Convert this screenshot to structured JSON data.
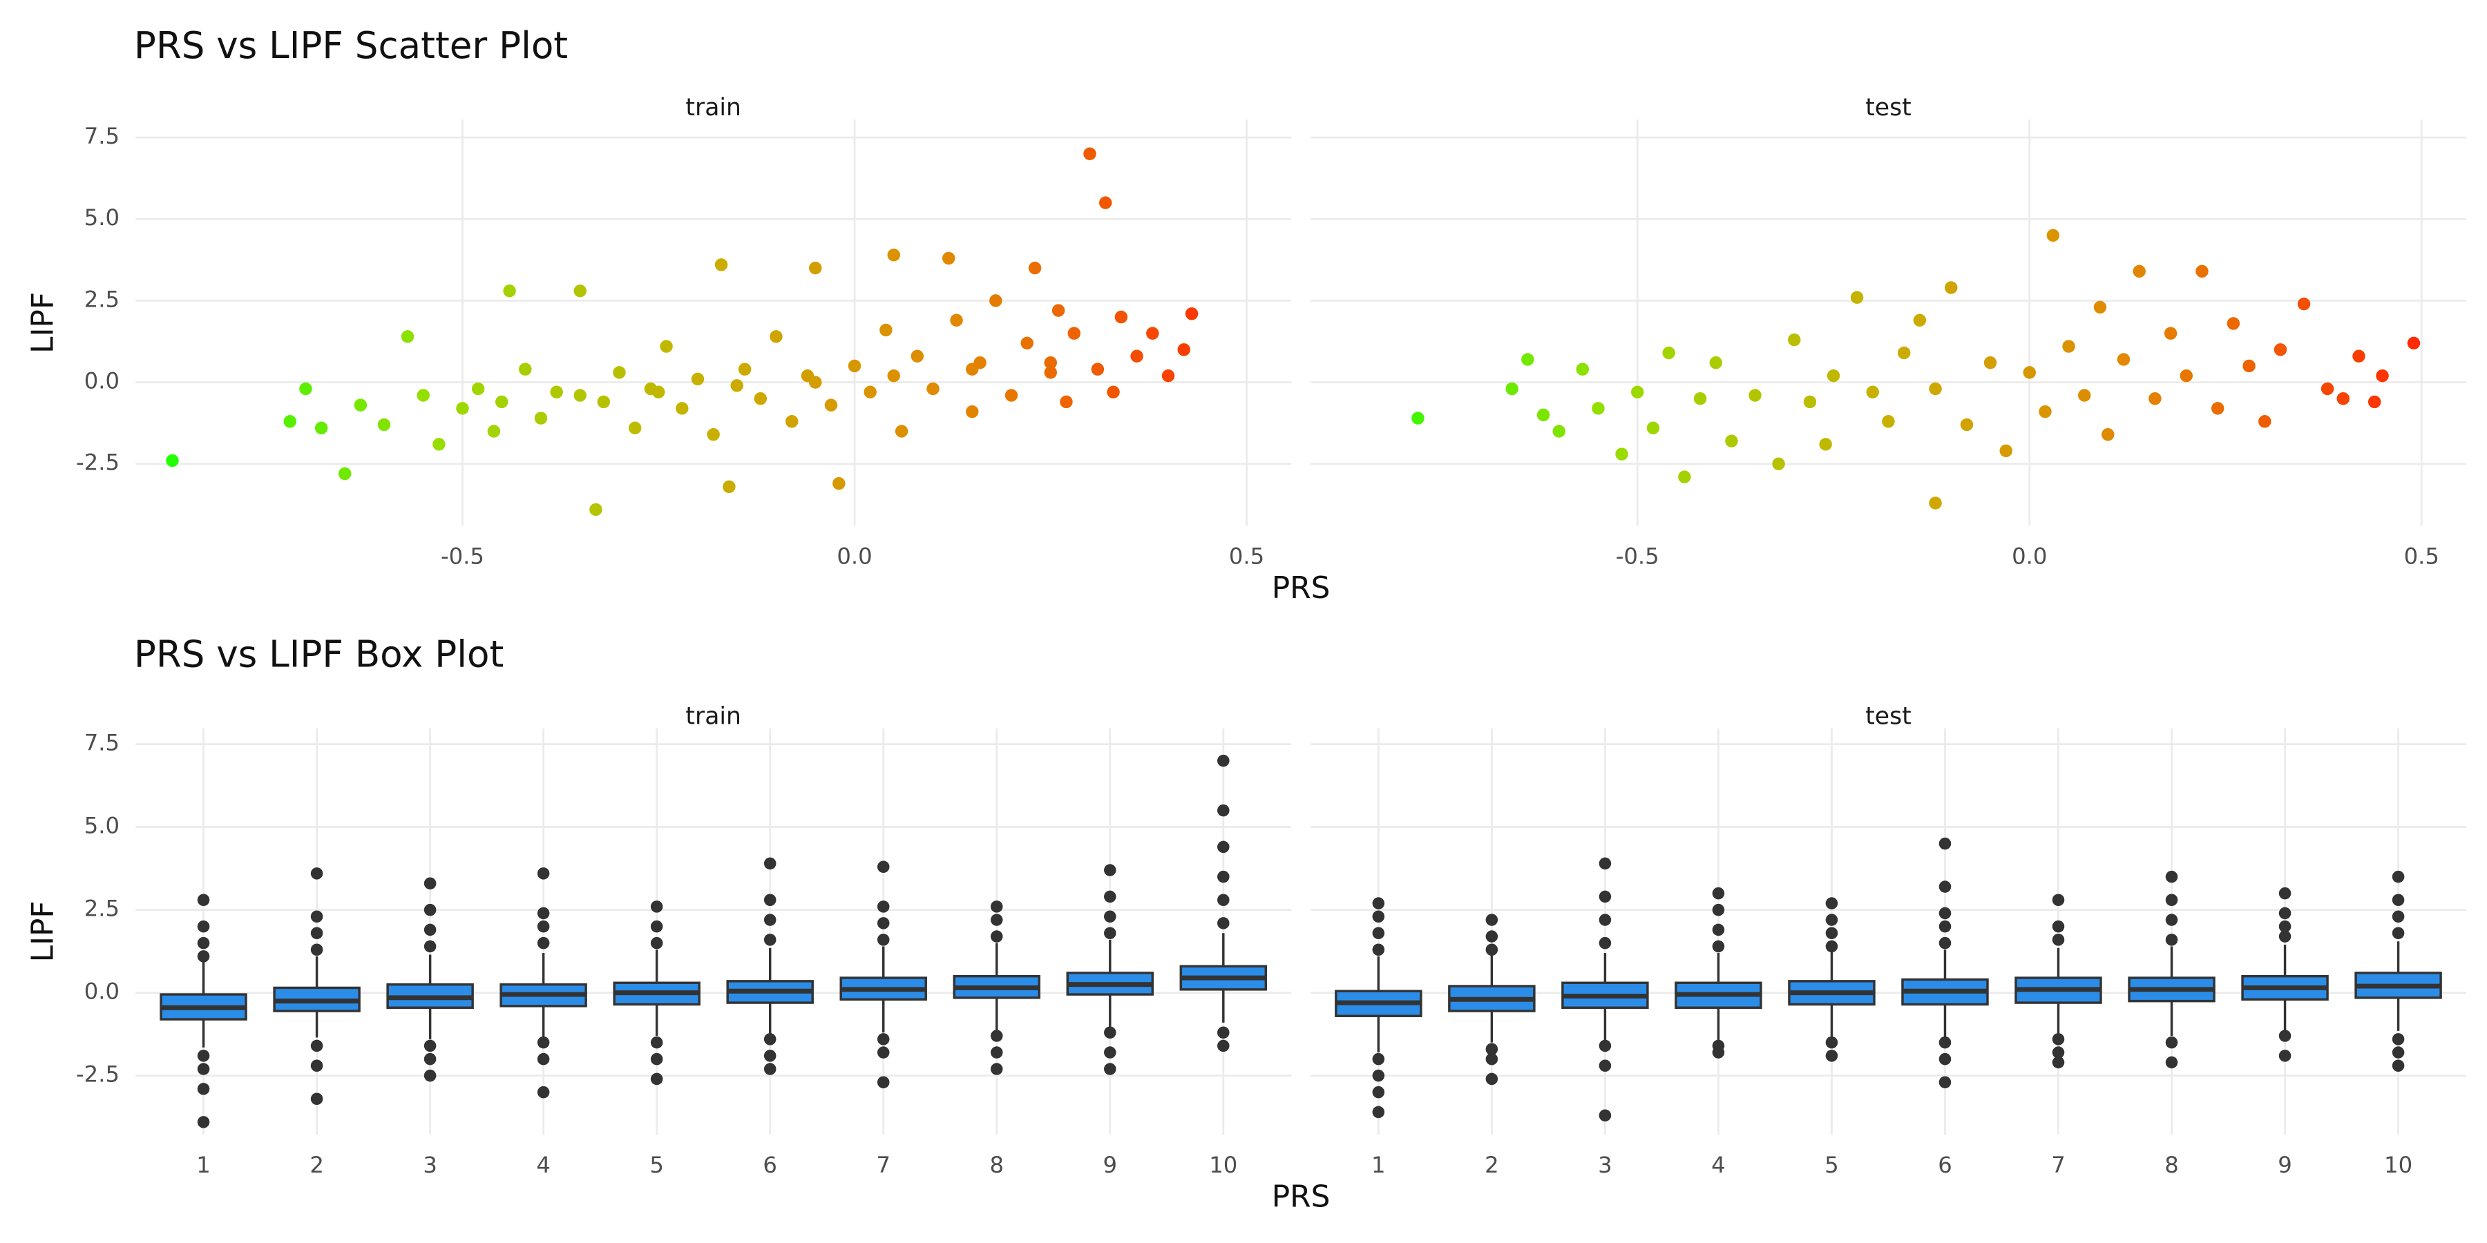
{
  "chart_data": [
    {
      "type": "scatter",
      "title": "PRS vs LIPF Scatter Plot",
      "xlabel": "PRS",
      "ylabel": "LIPF",
      "xlim": [
        -0.917,
        0.557
      ],
      "xticks": [
        -0.5,
        {
          "value": 0,
          "label": "0.0"
        },
        0.5
      ],
      "ylim": [
        -4.4,
        8.05
      ],
      "yticks": [
        -2.5,
        {
          "value": 0,
          "label": "0.0"
        },
        2.5,
        {
          "value": 5,
          "label": "5.0"
        },
        7.5
      ],
      "grid": true,
      "colors": [
        "#22ff00",
        "#99dd00",
        "#c8b000",
        "#e38400",
        "#ff2a00"
      ],
      "facets": [
        {
          "name": "train",
          "x": [
            -0.87,
            -0.72,
            -0.7,
            -0.68,
            -0.65,
            -0.63,
            -0.6,
            -0.57,
            -0.55,
            -0.53,
            -0.5,
            -0.48,
            -0.46,
            -0.45,
            -0.44,
            -0.42,
            -0.4,
            -0.38,
            -0.35,
            -0.35,
            -0.33,
            -0.32,
            -0.3,
            -0.28,
            -0.26,
            -0.25,
            -0.24,
            -0.22,
            -0.2,
            -0.18,
            -0.17,
            -0.16,
            -0.15,
            -0.14,
            -0.12,
            -0.1,
            -0.08,
            -0.06,
            -0.05,
            -0.05,
            -0.03,
            -0.02,
            0,
            0.02,
            0.04,
            0.05,
            0.05,
            0.06,
            0.08,
            0.1,
            0.12,
            0.13,
            0.15,
            0.15,
            0.16,
            0.18,
            0.2,
            0.22,
            0.23,
            0.25,
            0.25,
            0.26,
            0.27,
            0.28,
            0.3,
            0.31,
            0.32,
            0.33,
            0.34,
            0.36,
            0.38,
            0.4,
            0.42,
            0.43
          ],
          "y": [
            -2.4,
            -1.2,
            -0.2,
            -1.4,
            -2.8,
            -0.7,
            -1.3,
            1.4,
            -0.4,
            -1.9,
            -0.8,
            -0.2,
            -1.5,
            -0.6,
            2.8,
            0.4,
            -1.1,
            -0.3,
            2.8,
            -0.4,
            -3.9,
            -0.6,
            0.3,
            -1.4,
            -0.2,
            -0.3,
            1.1,
            -0.8,
            0.1,
            -1.6,
            3.6,
            -3.2,
            -0.1,
            0.4,
            -0.5,
            1.4,
            -1.2,
            0.2,
            3.5,
            0,
            -0.7,
            -3.1,
            0.5,
            -0.3,
            1.6,
            3.9,
            0.2,
            -1.5,
            0.8,
            -0.2,
            3.8,
            1.9,
            -0.9,
            0.4,
            0.6,
            2.5,
            -0.4,
            1.2,
            3.5,
            0.3,
            0.6,
            2.2,
            -0.6,
            1.5,
            7.0,
            0.4,
            5.5,
            -0.3,
            2.0,
            0.8,
            1.5,
            0.2,
            1.0,
            2.1
          ]
        },
        {
          "name": "test",
          "x": [
            -0.78,
            -0.66,
            -0.64,
            -0.62,
            -0.6,
            -0.57,
            -0.55,
            -0.52,
            -0.5,
            -0.48,
            -0.46,
            -0.44,
            -0.42,
            -0.4,
            -0.38,
            -0.35,
            -0.32,
            -0.3,
            -0.28,
            -0.26,
            -0.25,
            -0.22,
            -0.2,
            -0.18,
            -0.16,
            -0.14,
            -0.12,
            -0.12,
            -0.1,
            -0.08,
            -0.05,
            -0.03,
            0,
            0.02,
            0.03,
            0.05,
            0.07,
            0.09,
            0.1,
            0.12,
            0.14,
            0.16,
            0.18,
            0.2,
            0.22,
            0.24,
            0.26,
            0.28,
            0.3,
            0.32,
            0.35,
            0.38,
            0.4,
            0.42,
            0.44,
            0.45,
            0.49
          ],
          "y": [
            -1.1,
            -0.2,
            0.7,
            -1.0,
            -1.5,
            0.4,
            -0.8,
            -2.2,
            -0.3,
            -1.4,
            0.9,
            -2.9,
            -0.5,
            0.6,
            -1.8,
            -0.4,
            -2.5,
            1.3,
            -0.6,
            -1.9,
            0.2,
            2.6,
            -0.3,
            -1.2,
            0.9,
            1.9,
            -3.7,
            -0.2,
            2.9,
            -1.3,
            0.6,
            -2.1,
            0.3,
            -0.9,
            4.5,
            1.1,
            -0.4,
            2.3,
            -1.6,
            0.7,
            3.4,
            -0.5,
            1.5,
            0.2,
            3.4,
            -0.8,
            1.8,
            0.5,
            -1.2,
            1.0,
            2.4,
            -0.2,
            -0.5,
            0.8,
            -0.6,
            0.2,
            1.2
          ]
        }
      ]
    },
    {
      "type": "box",
      "title": "PRS vs LIPF Box Plot",
      "xlabel": "PRS",
      "ylabel": "LIPF",
      "categories": [
        "1",
        "2",
        "3",
        "4",
        "5",
        "6",
        "7",
        "8",
        "9",
        "10"
      ],
      "ylim": [
        -4.28,
        7.98
      ],
      "yticks": [
        -2.5,
        {
          "value": 0,
          "label": "0.0"
        },
        2.5,
        {
          "value": 5,
          "label": "5.0"
        },
        7.5
      ],
      "grid": true,
      "color": "#2b8de8",
      "line_color": "#333333",
      "facets": [
        {
          "name": "train",
          "boxes": [
            {
              "low": -1.65,
              "q1": -0.8,
              "median": -0.45,
              "q3": -0.05,
              "high": 0.95,
              "outliers": [
                1.1,
                1.5,
                2.0,
                2.8,
                -1.9,
                -2.3,
                -2.9,
                -3.9
              ]
            },
            {
              "low": -1.35,
              "q1": -0.55,
              "median": -0.25,
              "q3": 0.15,
              "high": 1.1,
              "outliers": [
                1.3,
                1.8,
                2.3,
                3.6,
                -1.6,
                -2.2,
                -3.2
              ]
            },
            {
              "low": -1.4,
              "q1": -0.45,
              "median": -0.15,
              "q3": 0.25,
              "high": 1.15,
              "outliers": [
                1.4,
                1.9,
                2.5,
                3.3,
                -1.6,
                -2.0,
                -2.5
              ]
            },
            {
              "low": -1.35,
              "q1": -0.4,
              "median": -0.05,
              "q3": 0.25,
              "high": 1.2,
              "outliers": [
                1.5,
                2.0,
                2.4,
                3.6,
                -1.5,
                -2.0,
                -3.0
              ]
            },
            {
              "low": -1.3,
              "q1": -0.35,
              "median": 0,
              "q3": 0.3,
              "high": 1.3,
              "outliers": [
                1.5,
                2.0,
                2.6,
                -1.5,
                -2.0,
                -2.6
              ]
            },
            {
              "low": -1.25,
              "q1": -0.3,
              "median": 0.05,
              "q3": 0.35,
              "high": 1.35,
              "outliers": [
                1.6,
                2.2,
                2.8,
                3.9,
                -1.4,
                -1.9,
                -2.3
              ]
            },
            {
              "low": -1.2,
              "q1": -0.2,
              "median": 0.1,
              "q3": 0.45,
              "high": 1.4,
              "outliers": [
                1.6,
                2.1,
                2.6,
                3.8,
                -1.4,
                -1.8,
                -2.7
              ]
            },
            {
              "low": -1.2,
              "q1": -0.15,
              "median": 0.15,
              "q3": 0.5,
              "high": 1.5,
              "outliers": [
                1.7,
                2.2,
                2.6,
                -1.3,
                -1.8,
                -2.3
              ]
            },
            {
              "low": -1.1,
              "q1": -0.05,
              "median": 0.25,
              "q3": 0.6,
              "high": 1.6,
              "outliers": [
                1.8,
                2.3,
                2.9,
                3.7,
                -1.2,
                -1.8,
                -2.3
              ]
            },
            {
              "low": -0.9,
              "q1": 0.1,
              "median": 0.45,
              "q3": 0.8,
              "high": 1.8,
              "outliers": [
                2.1,
                2.8,
                3.5,
                4.4,
                5.5,
                7.0,
                -1.2,
                -1.6
              ]
            }
          ]
        },
        {
          "name": "test",
          "boxes": [
            {
              "low": -1.8,
              "q1": -0.7,
              "median": -0.3,
              "q3": 0.05,
              "high": 1.1,
              "outliers": [
                1.3,
                1.8,
                2.3,
                2.7,
                -2.0,
                -2.5,
                -3.0,
                -3.6
              ]
            },
            {
              "low": -1.5,
              "q1": -0.55,
              "median": -0.2,
              "q3": 0.2,
              "high": 1.15,
              "outliers": [
                1.3,
                1.7,
                2.2,
                -1.7,
                -2.0,
                -2.6
              ]
            },
            {
              "low": -1.5,
              "q1": -0.45,
              "median": -0.1,
              "q3": 0.3,
              "high": 1.2,
              "outliers": [
                1.5,
                2.2,
                2.9,
                3.9,
                -1.6,
                -2.2,
                -3.7
              ]
            },
            {
              "low": -1.45,
              "q1": -0.45,
              "median": -0.05,
              "q3": 0.3,
              "high": 1.2,
              "outliers": [
                1.4,
                1.9,
                2.5,
                3.0,
                -1.6,
                -1.8
              ]
            },
            {
              "low": -1.4,
              "q1": -0.35,
              "median": 0,
              "q3": 0.35,
              "high": 1.25,
              "outliers": [
                1.4,
                1.8,
                2.2,
                2.7,
                -1.5,
                -1.9
              ]
            },
            {
              "low": -1.4,
              "q1": -0.35,
              "median": 0.05,
              "q3": 0.4,
              "high": 1.3,
              "outliers": [
                1.5,
                2.0,
                2.4,
                3.2,
                4.5,
                -1.5,
                -2.0,
                -2.7
              ]
            },
            {
              "low": -1.3,
              "q1": -0.3,
              "median": 0.1,
              "q3": 0.45,
              "high": 1.35,
              "outliers": [
                1.6,
                2.0,
                2.8,
                -1.4,
                -1.8,
                -2.1
              ]
            },
            {
              "low": -1.3,
              "q1": -0.25,
              "median": 0.1,
              "q3": 0.45,
              "high": 1.4,
              "outliers": [
                1.6,
                2.2,
                2.8,
                3.5,
                -1.5,
                -2.1
              ]
            },
            {
              "low": -1.25,
              "q1": -0.2,
              "median": 0.15,
              "q3": 0.5,
              "high": 1.45,
              "outliers": [
                1.7,
                2.0,
                2.4,
                3.0,
                -1.3,
                -1.9
              ]
            },
            {
              "low": -1.15,
              "q1": -0.15,
              "median": 0.2,
              "q3": 0.6,
              "high": 1.55,
              "outliers": [
                1.8,
                2.3,
                2.8,
                3.5,
                -1.4,
                -1.8,
                -2.2
              ]
            }
          ]
        }
      ]
    }
  ]
}
